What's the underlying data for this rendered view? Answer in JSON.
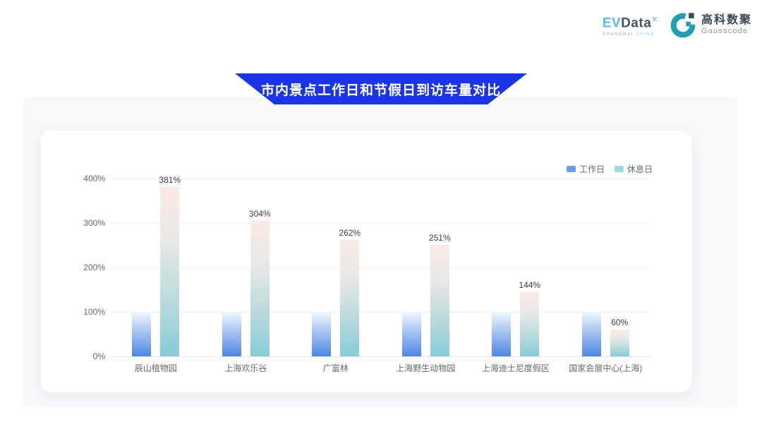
{
  "page": {
    "title_banner": "市内景点工作日和节假日到访车量对比"
  },
  "logos": {
    "evdata": {
      "prefix": "EV",
      "suffix": "Data",
      "superscript": "✕",
      "subtext_left": "SHANGHAI",
      "subtext_right": "CHINA"
    },
    "gausscode": {
      "cn": "高科数聚",
      "en": "Gausscode"
    }
  },
  "icons": {
    "gausscode_mark": "teal-ring-with-notch-and-squares"
  },
  "chart_data": {
    "type": "bar",
    "title": "市内景点工作日和节假日到访车量对比",
    "categories": [
      "辰山植物园",
      "上海欢乐谷",
      "广富林",
      "上海野生动物园",
      "上海迪士尼度假区",
      "国家会展中心(上海)"
    ],
    "series": [
      {
        "name": "工作日",
        "values": [
          100,
          100,
          100,
          100,
          100,
          100
        ]
      },
      {
        "name": "休息日",
        "values": [
          381,
          304,
          262,
          251,
          144,
          60
        ]
      }
    ],
    "value_labels": [
      "381%",
      "304%",
      "262%",
      "251%",
      "144%",
      "60%"
    ],
    "y_ticks": [
      "400%",
      "300%",
      "200%",
      "100%",
      "0%"
    ],
    "ylim": [
      0,
      400
    ],
    "grid": true,
    "legend_position": "top-right",
    "colors": {
      "workday_top": "#f0f7fe",
      "workday_bottom": "#4d85e3",
      "holiday_top": "#fbe9e3",
      "holiday_mid": "#e7e9e7",
      "holiday_mid2": "#b9d9db",
      "holiday_bottom": "#86ccd8",
      "legend_workday": "#6f9ae6",
      "legend_holiday": "#9ed9e0",
      "banner_blue": "#1a34e6"
    }
  }
}
